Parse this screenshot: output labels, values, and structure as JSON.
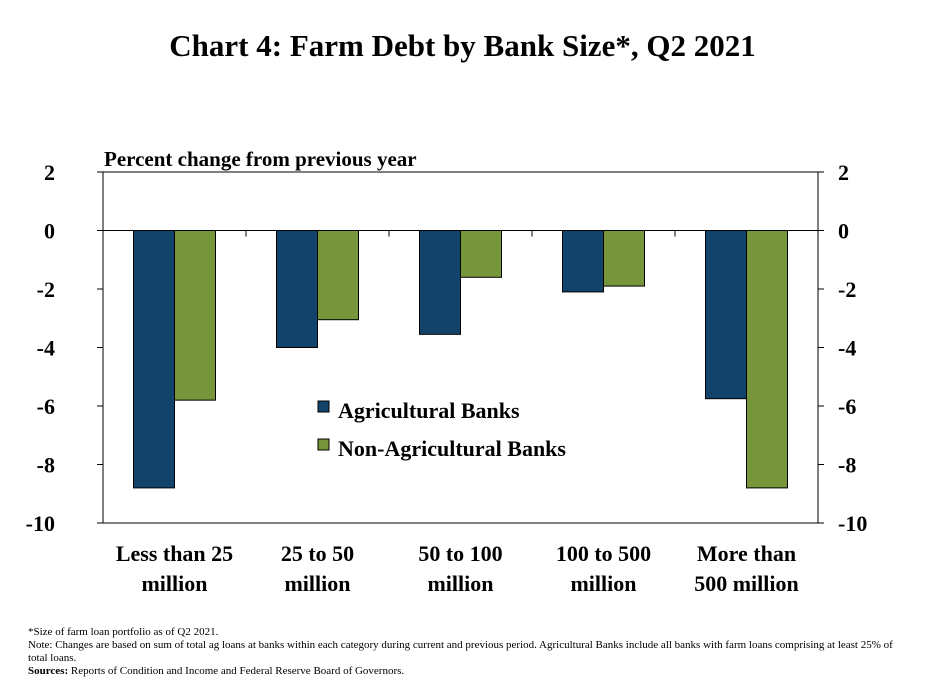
{
  "chart_data": {
    "type": "bar",
    "title": "Chart 4: Farm Debt by Bank Size*, Q2 2021",
    "ylabel": "Percent change from previous year",
    "categories": [
      [
        "Less than 25",
        "million"
      ],
      [
        "25 to 50",
        "million"
      ],
      [
        "50 to 100",
        "million"
      ],
      [
        "100 to 500",
        "million"
      ],
      [
        "More than",
        "500 million"
      ]
    ],
    "series": [
      {
        "name": "Agricultural Banks",
        "color": "#12436B",
        "values": [
          -8.8,
          -4.0,
          -3.55,
          -2.1,
          -5.75
        ]
      },
      {
        "name": "Non-Agricultural Banks",
        "color": "#77963C",
        "values": [
          -5.8,
          -3.05,
          -1.6,
          -1.9,
          -8.8
        ]
      }
    ],
    "ylim": [
      -10,
      2
    ],
    "yticks": [
      "2",
      "0",
      "-2",
      "-4",
      "-6",
      "-8",
      "-10"
    ],
    "ytick_values": [
      2,
      0,
      -2,
      -4,
      -6,
      -8,
      -10
    ],
    "secondary_axis": true,
    "grid": false,
    "legend_position": "inside-center"
  },
  "footnotes": {
    "size_note": "*Size of farm loan portfolio as of Q2 2021.",
    "note": "Note: Changes are based on sum of total ag loans at banks within each category during current and previous period. Agricultural Banks include all banks with farm loans comprising at least 25% of total loans.",
    "sources_label": "Sources:",
    "sources_text": " Reports of Condition and Income and Federal Reserve Board of Governors."
  }
}
